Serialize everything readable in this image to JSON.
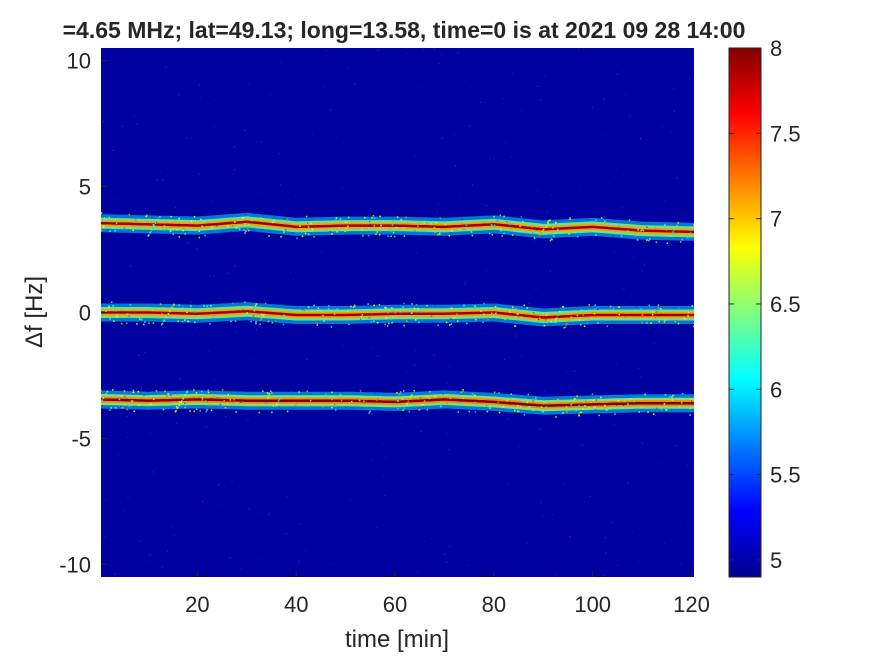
{
  "chart_data": {
    "type": "heatmap",
    "title": "=4.65 MHz;  lat=49.13; long=13.58, time=0 is at 2021 09 28 14:00",
    "xlabel": "time [min]",
    "ylabel": "Δf [Hz]",
    "xlim": [
      0.5,
      120.5
    ],
    "ylim": [
      -10.5,
      10.5
    ],
    "x_ticks": [
      {
        "value": 20,
        "label": "20"
      },
      {
        "value": 40,
        "label": "40"
      },
      {
        "value": 60,
        "label": "60"
      },
      {
        "value": 80,
        "label": "80"
      },
      {
        "value": 100,
        "label": "100"
      },
      {
        "value": 120,
        "label": "120"
      }
    ],
    "y_ticks": [
      {
        "value": 10,
        "label": "10"
      },
      {
        "value": 5,
        "label": "5"
      },
      {
        "value": 0,
        "label": "0"
      },
      {
        "value": -5,
        "label": "-5"
      },
      {
        "value": -10,
        "label": "-10"
      }
    ],
    "colorbar": {
      "colormap": "jet",
      "range": [
        4.9,
        8
      ],
      "ticks": [
        {
          "value": 8,
          "label": "8"
        },
        {
          "value": 7.5,
          "label": "7.5"
        },
        {
          "value": 7,
          "label": "7"
        },
        {
          "value": 6.5,
          "label": "6.5"
        },
        {
          "value": 6,
          "label": "6"
        },
        {
          "value": 5.5,
          "label": "5.5"
        },
        {
          "value": 5,
          "label": "5"
        }
      ]
    },
    "background_level": 5.0,
    "bands": [
      {
        "center_track": [
          [
            0,
            3.55
          ],
          [
            10,
            3.5
          ],
          [
            20,
            3.45
          ],
          [
            30,
            3.6
          ],
          [
            40,
            3.4
          ],
          [
            50,
            3.45
          ],
          [
            60,
            3.45
          ],
          [
            70,
            3.4
          ],
          [
            80,
            3.5
          ],
          [
            90,
            3.3
          ],
          [
            100,
            3.4
          ],
          [
            110,
            3.25
          ],
          [
            120,
            3.2
          ]
        ],
        "peak_level": 7.9
      },
      {
        "center_track": [
          [
            0,
            0.0
          ],
          [
            10,
            0.0
          ],
          [
            20,
            -0.05
          ],
          [
            30,
            0.05
          ],
          [
            40,
            -0.1
          ],
          [
            50,
            -0.1
          ],
          [
            60,
            -0.05
          ],
          [
            70,
            -0.05
          ],
          [
            80,
            0.0
          ],
          [
            90,
            -0.2
          ],
          [
            100,
            -0.1
          ],
          [
            110,
            -0.1
          ],
          [
            120,
            -0.1
          ]
        ],
        "peak_level": 7.9
      },
      {
        "center_track": [
          [
            0,
            -3.45
          ],
          [
            10,
            -3.5
          ],
          [
            20,
            -3.45
          ],
          [
            30,
            -3.5
          ],
          [
            40,
            -3.5
          ],
          [
            50,
            -3.5
          ],
          [
            60,
            -3.55
          ],
          [
            70,
            -3.45
          ],
          [
            80,
            -3.55
          ],
          [
            90,
            -3.7
          ],
          [
            100,
            -3.65
          ],
          [
            110,
            -3.6
          ],
          [
            120,
            -3.6
          ]
        ],
        "peak_level": 8.0
      }
    ]
  }
}
